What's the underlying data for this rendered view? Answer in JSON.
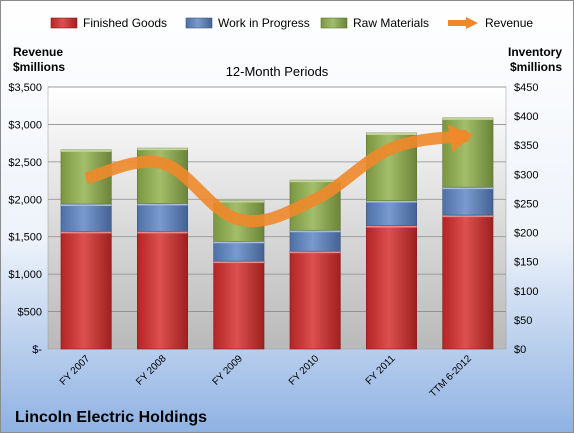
{
  "chart_data": {
    "type": "bar",
    "title": "12-Month Periods",
    "caption": "Lincoln Electric Holdings",
    "categories": [
      "FY 2007",
      "FY 2008",
      "FY 2009",
      "FY 2010",
      "FY 2011",
      "TTM 6-2012"
    ],
    "series": [
      {
        "name": "Finished Goods",
        "axis": "right",
        "stacked": true,
        "color": "#d42a2a",
        "values": [
          202,
          202,
          151,
          168,
          212,
          230
        ]
      },
      {
        "name": "Work in Progress",
        "axis": "right",
        "stacked": true,
        "color": "#5b84c4",
        "values": [
          47,
          48,
          34,
          36,
          43,
          48
        ]
      },
      {
        "name": "Raw Materials",
        "axis": "right",
        "stacked": true,
        "color": "#8fb04a",
        "values": [
          93,
          95,
          70,
          86,
          116,
          119
        ]
      },
      {
        "name": "Revenue",
        "axis": "left",
        "type": "line",
        "color": "#f0882a",
        "values": [
          2280,
          2480,
          1730,
          2000,
          2680,
          2850
        ]
      }
    ],
    "y_left": {
      "label_line1": "Revenue",
      "label_line2": "$millions",
      "range": [
        0,
        3500
      ],
      "ticks": [
        0,
        500,
        1000,
        1500,
        2000,
        2500,
        3000,
        3500
      ],
      "tick_labels": [
        "$-",
        "$500",
        "$1,000",
        "$1,500",
        "$2,000",
        "$2,500",
        "$3,000",
        "$3,500"
      ]
    },
    "y_right": {
      "label_line1": "Inventory",
      "label_line2": "$millions",
      "range": [
        0,
        450
      ],
      "ticks": [
        0,
        50,
        100,
        150,
        200,
        250,
        300,
        350,
        400,
        450
      ],
      "tick_labels": [
        "$0",
        "$50",
        "$100",
        "$150",
        "$200",
        "$250",
        "$300",
        "$350",
        "$400",
        "$450"
      ]
    },
    "grid": true,
    "legend_position": "top"
  }
}
